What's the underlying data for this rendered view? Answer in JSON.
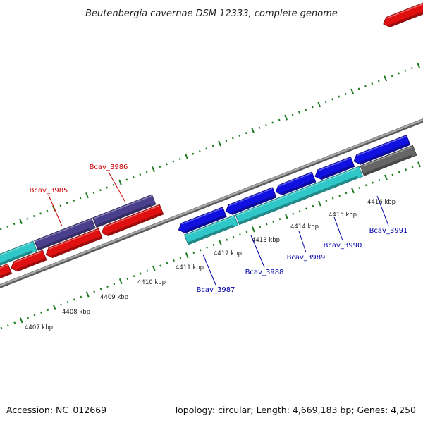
{
  "title": "Beutenbergia cavernae DSM 12333, complete genome",
  "footer": {
    "accession": "Accession: NC_012669",
    "summary": "Topology: circular; Length: 4,669,183 bp; Genes: 4,250"
  },
  "colors": {
    "background": "#ffffff",
    "backbone": "#8a8a8a",
    "ticks": "#1f7a1f",
    "forward_cds": "#1010e0",
    "forward_rna": "#4a3f8c",
    "reverse_cds": "#e01010",
    "teal_cds": "#2fc7c7",
    "pseudo": "#666666",
    "label_forward": "#0000aa",
    "label_reverse": "#cc0000"
  },
  "scale": {
    "labels": [
      "4407 kbp",
      "4408 kbp",
      "4409 kbp",
      "4410 kbp",
      "4411 kbp",
      "4412 kbp",
      "4413 kbp",
      "4414 kbp",
      "4415 kbp",
      "4416 kbp"
    ]
  },
  "genes": {
    "labeled": [
      {
        "id": "Bcav_3985",
        "strand": "reverse"
      },
      {
        "id": "Bcav_3986",
        "strand": "reverse"
      },
      {
        "id": "Bcav_3987",
        "strand": "forward"
      },
      {
        "id": "Bcav_3988",
        "strand": "forward"
      },
      {
        "id": "Bcav_3989",
        "strand": "forward"
      },
      {
        "id": "Bcav_3990",
        "strand": "forward"
      },
      {
        "id": "Bcav_3991",
        "strand": "forward"
      }
    ]
  }
}
